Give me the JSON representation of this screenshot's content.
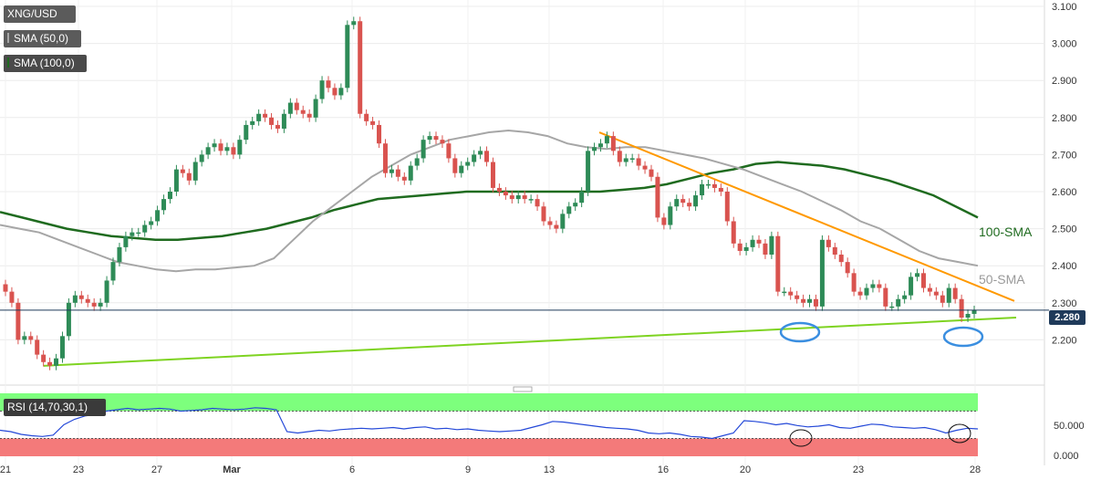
{
  "legend": {
    "ticker": "XNG/USD",
    "sma50": "SMA (50,0)",
    "sma100": "SMA (100,0)",
    "rsi": "RSI (14,70,30,1)"
  },
  "current_price": "2.280",
  "colors": {
    "up": "#2e8b57",
    "down": "#d9534f",
    "sma50": "#a6a6a6",
    "sma100": "#1f6b1f",
    "resistance": "#ff9900",
    "support": "#7ed321",
    "rsi_line": "#2448d8",
    "rsi_overbought": "#7dff7d",
    "rsi_oversold": "#f47a7a",
    "highlight_circle": "#3a8ee0"
  },
  "chart_data": {
    "type": "candlestick",
    "title": "",
    "x_tick_labels": [
      "21",
      "23",
      "27",
      "Mar",
      "6",
      "9",
      "13",
      "16",
      "20",
      "23",
      "28"
    ],
    "y_tick_labels": [
      "3.100",
      "3.000",
      "2.900",
      "2.800",
      "2.700",
      "2.600",
      "2.500",
      "2.400",
      "2.300",
      "2.200"
    ],
    "ylim": [
      2.1,
      3.1
    ],
    "annotations": [
      "100-SMA",
      "50-SMA"
    ],
    "close_series": [
      2.33,
      2.3,
      2.2,
      2.21,
      2.2,
      2.16,
      2.14,
      2.13,
      2.15,
      2.21,
      2.3,
      2.32,
      2.31,
      2.3,
      2.29,
      2.3,
      2.36,
      2.41,
      2.45,
      2.48,
      2.49,
      2.49,
      2.51,
      2.52,
      2.55,
      2.58,
      2.6,
      2.66,
      2.65,
      2.63,
      2.68,
      2.7,
      2.72,
      2.73,
      2.71,
      2.72,
      2.7,
      2.74,
      2.78,
      2.79,
      2.81,
      2.8,
      2.78,
      2.77,
      2.81,
      2.84,
      2.82,
      2.81,
      2.8,
      2.85,
      2.9,
      2.88,
      2.86,
      2.88,
      3.05,
      3.06,
      2.81,
      2.79,
      2.78,
      2.73,
      2.65,
      2.66,
      2.64,
      2.63,
      2.67,
      2.69,
      2.74,
      2.75,
      2.74,
      2.73,
      2.69,
      2.65,
      2.67,
      2.68,
      2.7,
      2.71,
      2.68,
      2.61,
      2.6,
      2.59,
      2.58,
      2.59,
      2.58,
      2.58,
      2.56,
      2.52,
      2.51,
      2.5,
      2.54,
      2.56,
      2.57,
      2.6,
      2.71,
      2.72,
      2.73,
      2.75,
      2.71,
      2.68,
      2.69,
      2.69,
      2.67,
      2.66,
      2.64,
      2.53,
      2.51,
      2.56,
      2.58,
      2.57,
      2.56,
      2.59,
      2.62,
      2.62,
      2.61,
      2.6,
      2.52,
      2.46,
      2.44,
      2.45,
      2.47,
      2.46,
      2.43,
      2.48,
      2.33,
      2.33,
      2.32,
      2.31,
      2.3,
      2.31,
      2.29,
      2.47,
      2.45,
      2.43,
      2.41,
      2.38,
      2.33,
      2.32,
      2.34,
      2.35,
      2.34,
      2.29,
      2.29,
      2.31,
      2.32,
      2.37,
      2.38,
      2.34,
      2.33,
      2.32,
      2.3,
      2.34,
      2.31,
      2.26,
      2.27,
      2.28
    ],
    "sma50": [
      2.51,
      2.5,
      2.49,
      2.47,
      2.45,
      2.43,
      2.41,
      2.4,
      2.39,
      2.385,
      2.39,
      2.39,
      2.395,
      2.4,
      2.42,
      2.47,
      2.52,
      2.56,
      2.6,
      2.64,
      2.67,
      2.7,
      2.72,
      2.74,
      2.75,
      2.76,
      2.765,
      2.76,
      2.75,
      2.73,
      2.72,
      2.715,
      2.72,
      2.72,
      2.71,
      2.7,
      2.69,
      2.675,
      2.66,
      2.64,
      2.62,
      2.6,
      2.575,
      2.55,
      2.52,
      2.5,
      2.47,
      2.44,
      2.42,
      2.41,
      2.4
    ],
    "sma100": [
      2.545,
      2.53,
      2.515,
      2.5,
      2.49,
      2.48,
      2.475,
      2.47,
      2.47,
      2.475,
      2.48,
      2.49,
      2.5,
      2.515,
      2.53,
      2.55,
      2.565,
      2.58,
      2.585,
      2.59,
      2.595,
      2.6,
      2.6,
      2.6,
      2.6,
      2.6,
      2.6,
      2.6,
      2.605,
      2.61,
      2.62,
      2.635,
      2.65,
      2.66,
      2.675,
      2.68,
      2.675,
      2.67,
      2.66,
      2.645,
      2.63,
      2.61,
      2.59,
      2.56,
      2.53
    ],
    "resistance_line": {
      "start": [
        2.76
      ],
      "end": [
        2.305
      ]
    },
    "support_line": {
      "start": [
        2.13
      ],
      "end": [
        2.26
      ]
    },
    "current_price": 2.28,
    "rsi": {
      "levels": [
        70,
        30
      ],
      "tick_labels": [
        "50.000",
        "0.000"
      ],
      "values": [
        42,
        40,
        36,
        34,
        33,
        35,
        50,
        58,
        63,
        65,
        70,
        72,
        74,
        72,
        73,
        74,
        73,
        70,
        71,
        72,
        74,
        73,
        72,
        73,
        75,
        74,
        72,
        40,
        38,
        40,
        42,
        41,
        43,
        44,
        45,
        44,
        45,
        46,
        44,
        46,
        47,
        44,
        45,
        43,
        44,
        42,
        41,
        40,
        41,
        42,
        46,
        50,
        55,
        54,
        52,
        50,
        48,
        46,
        45,
        44,
        42,
        38,
        37,
        38,
        36,
        33,
        32,
        30,
        34,
        38,
        56,
        55,
        53,
        50,
        52,
        49,
        47,
        48,
        50,
        46,
        45,
        48,
        51,
        50,
        47,
        46,
        45,
        46,
        43,
        38,
        42,
        45,
        44
      ]
    }
  }
}
